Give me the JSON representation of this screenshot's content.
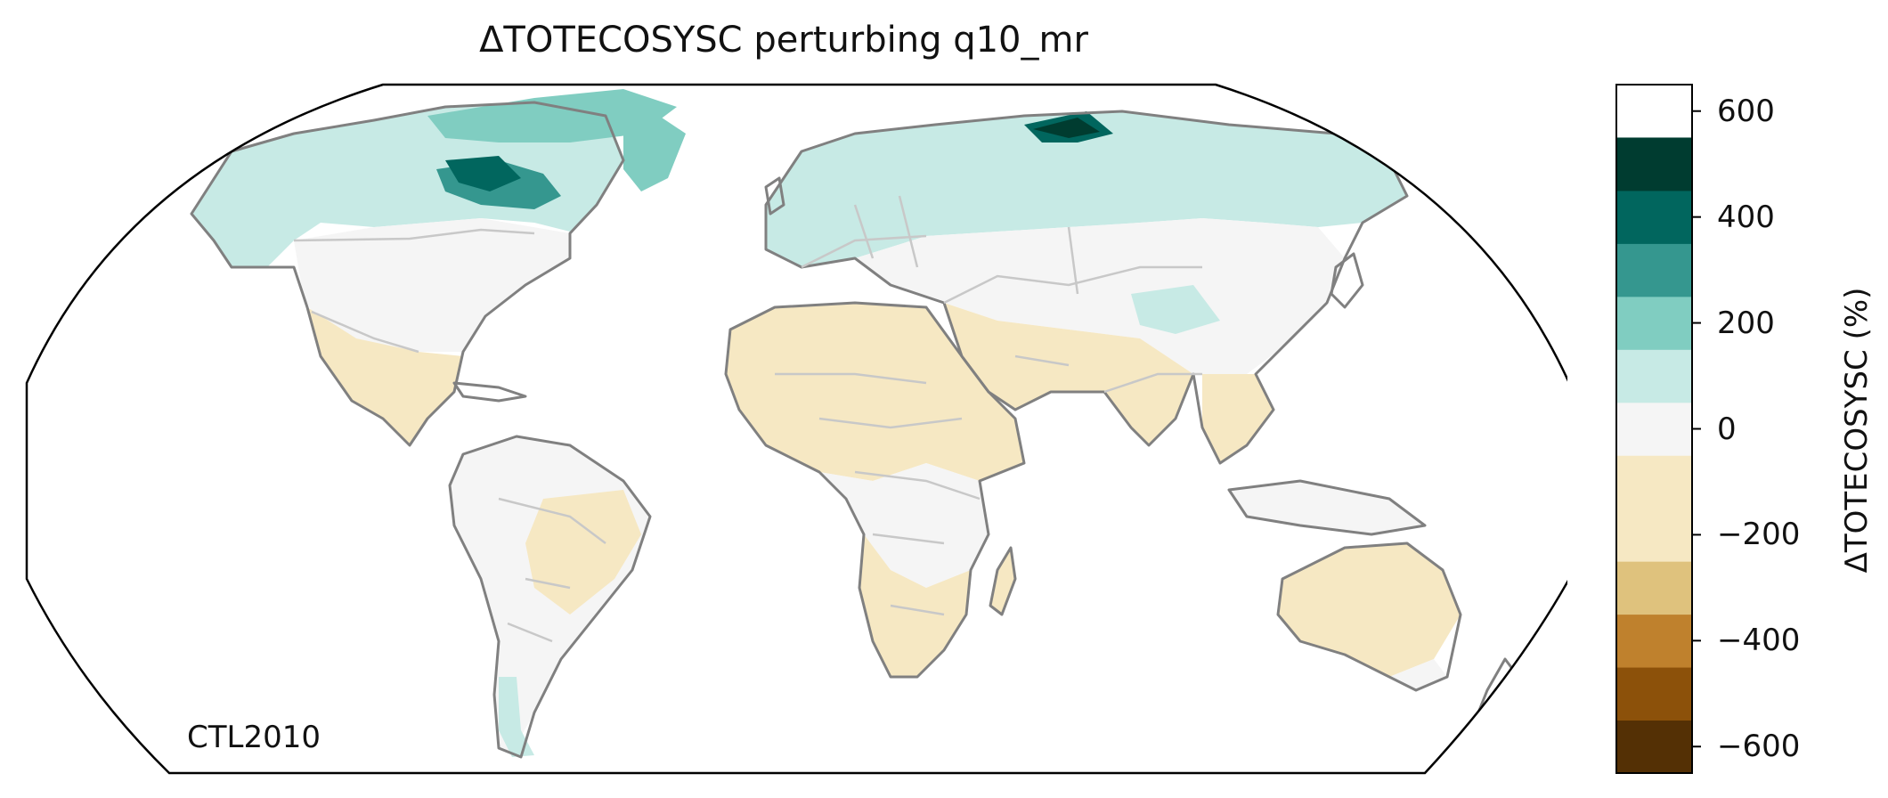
{
  "title": "ΔTOTECOSYSC perturbing q10_mr",
  "map_label": "CTL2010",
  "colorbar": {
    "label": "ΔTOTECOSYSC (%)",
    "ticks": [
      "600",
      "400",
      "200",
      "0",
      "−200",
      "−400",
      "−600"
    ],
    "tick_values": [
      600,
      400,
      200,
      0,
      -200,
      -400,
      -600
    ],
    "range": [
      -650,
      650
    ],
    "bins": [
      {
        "from": -650,
        "to": -550,
        "color": "#543005"
      },
      {
        "from": -550,
        "to": -450,
        "color": "#8c510a"
      },
      {
        "from": -450,
        "to": -350,
        "color": "#bf812d"
      },
      {
        "from": -350,
        "to": -250,
        "color": "#dfc27d"
      },
      {
        "from": -250,
        "to": -50,
        "color": "#f6e8c3"
      },
      {
        "from": -50,
        "to": 50,
        "color": "#f5f5f5"
      },
      {
        "from": 50,
        "to": 150,
        "color": "#c7eae5"
      },
      {
        "from": 150,
        "to": 250,
        "color": "#80cdc1"
      },
      {
        "from": 250,
        "to": 350,
        "color": "#35978f"
      },
      {
        "from": 350,
        "to": 450,
        "color": "#01665e"
      },
      {
        "from": 450,
        "to": 550,
        "color": "#003c30"
      }
    ]
  },
  "colors": {
    "coastline": "#808080",
    "borders": "#c8c8c8",
    "frame": "#000000"
  }
}
